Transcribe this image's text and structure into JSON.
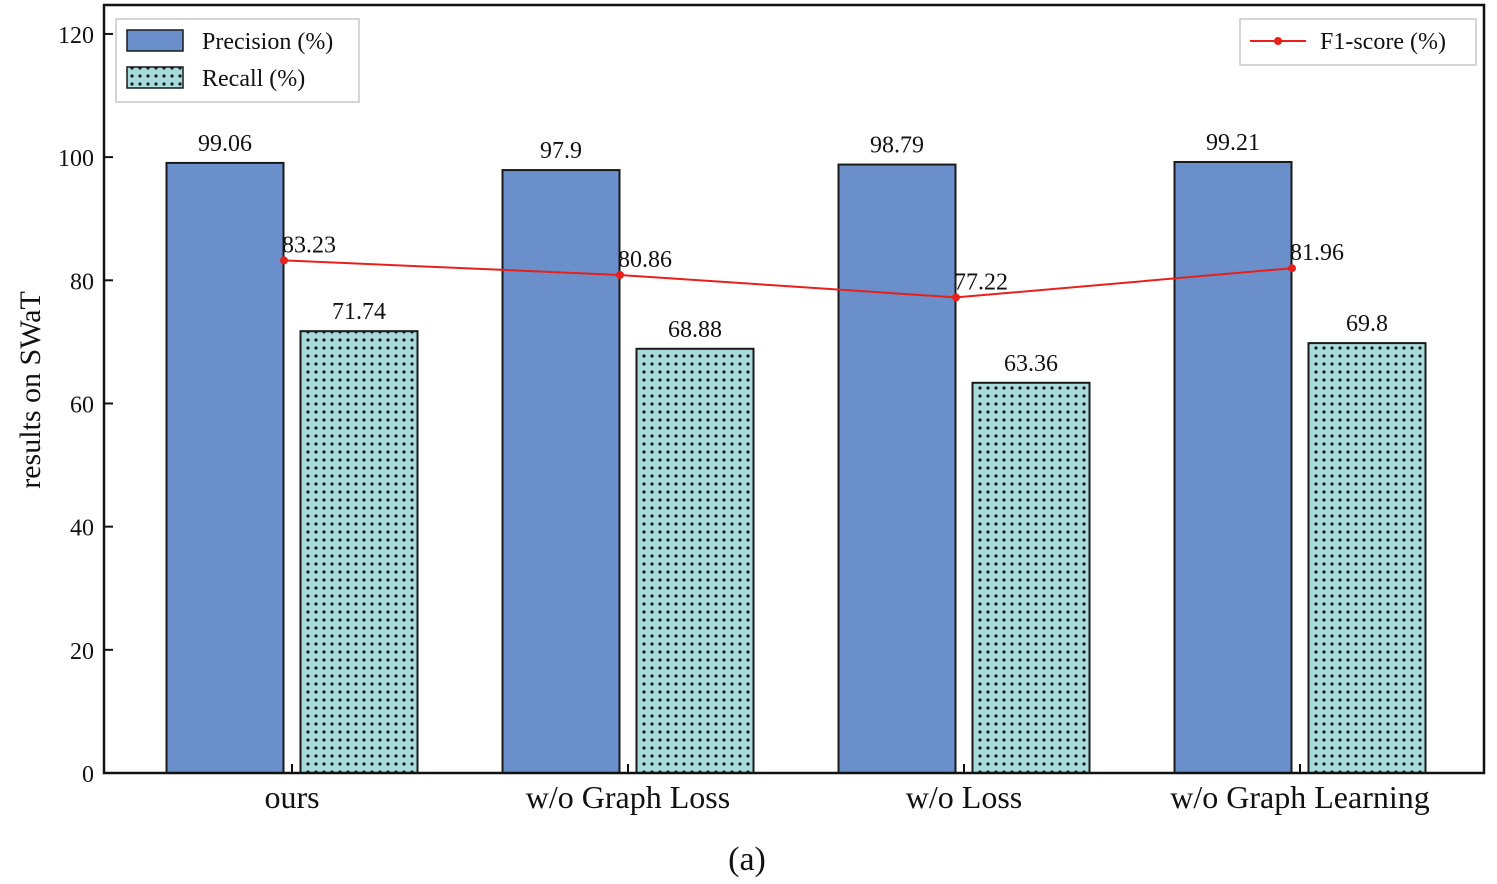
{
  "chart_data": {
    "type": "bar",
    "categories": [
      "ours",
      "w/o Graph Loss",
      "w/o Loss",
      "w/o Graph Learning"
    ],
    "series": [
      {
        "name": "Precision (%)",
        "kind": "bar",
        "values": [
          99.06,
          97.9,
          98.79,
          99.21
        ],
        "color": "#6a8fca",
        "pattern": "solid"
      },
      {
        "name": "Recall (%)",
        "kind": "bar",
        "values": [
          71.74,
          68.88,
          63.36,
          69.8
        ],
        "color": "#a8dcdc",
        "pattern": "dots"
      },
      {
        "name": "F1-score (%)",
        "kind": "line",
        "values": [
          83.23,
          80.86,
          77.22,
          81.96
        ],
        "color": "#e8201c"
      }
    ],
    "value_labels": {
      "precision": [
        "99.06",
        "97.9",
        "98.79",
        "99.21"
      ],
      "recall": [
        "71.74",
        "68.88",
        "63.36",
        "69.8"
      ],
      "f1": [
        "83.23",
        "80.86",
        "77.22",
        "81.96"
      ]
    },
    "ylabel": "results on SWaT",
    "xlabel": "",
    "ylim": [
      0,
      120
    ],
    "yticks": [
      0,
      20,
      40,
      60,
      80,
      100,
      120
    ],
    "legend_left_placement": "top-left",
    "legend_right_placement": "top-right",
    "caption": "(a)"
  }
}
